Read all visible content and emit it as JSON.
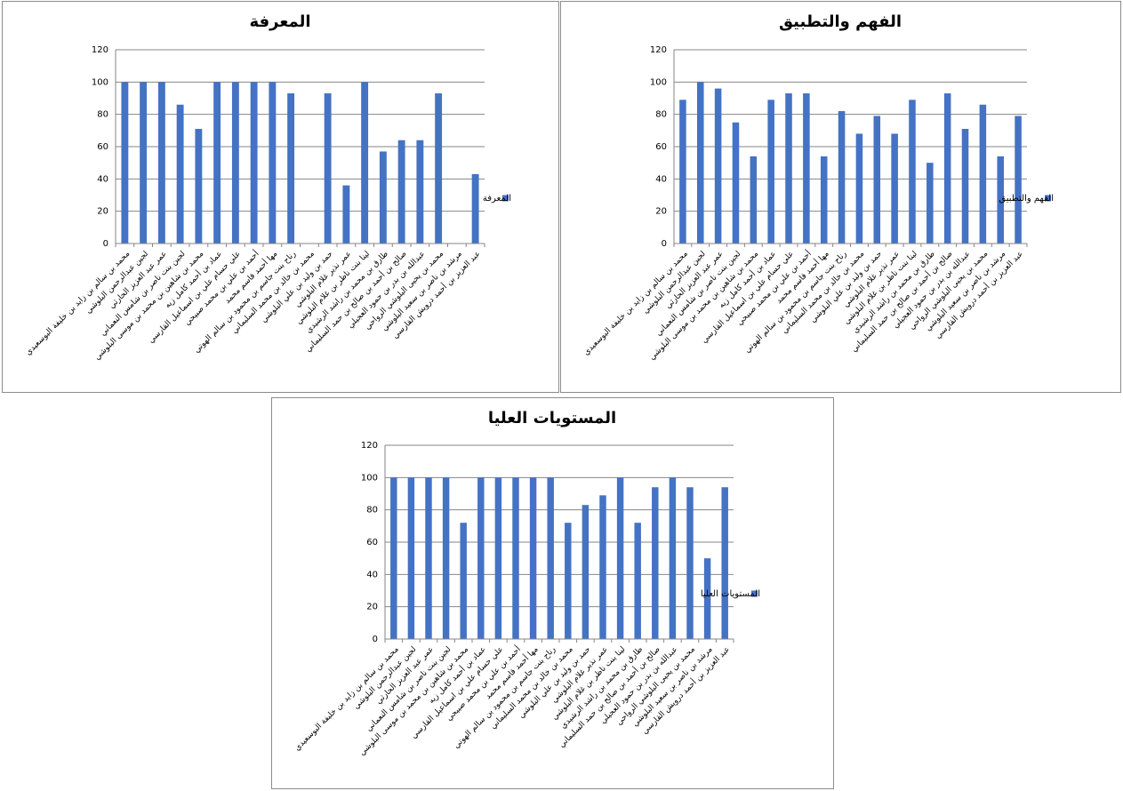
{
  "chart_data": [
    {
      "type": "bar",
      "title": "المعرفة",
      "color": "#4472c4",
      "legend": "right",
      "grid": true,
      "categories": [
        "محمد بن سالم بن زايد بن خليفة البوسعيدي",
        "لجين عبدالرحمن البلوشي",
        "عمر عبد العزيز الحارثي",
        "لجين بنت ناصر بن شامس النعماني",
        "محمد بن شاهين بن محمد بن موسى البلوشي",
        "عماد بن أحمد كامل زيه",
        "علي حسام علي بن اسماعيل القارسي",
        "أحمد بن علي بن محمد صبيحي",
        "مها أحمد قاسم محمد",
        "رناح بنت جاسم بن محمود بن سالم الهوتي",
        "محمد بن خالد بن محمد السليماني",
        "حمد بن وليد بن علي البلوشي",
        "عمر نذير غلام البلوشي",
        "لينا بنت ناظر بن غلام البلوشي",
        "طارق بن محمد بن راشد الرشيدي",
        "صالح بن أحمد بن صالح بن حمد السليماني",
        "عبدالله بن بدر بن حمود العجيلي",
        "محمد بن يحيى البلوشي الرواحي",
        "مرشد بن ناصر بن سعيد البلوشي",
        "عبد العزيز بن أحمد درويش القارسي"
      ],
      "series": [
        {
          "name": "المعرفة",
          "color": "#4472c4",
          "values": [
            100,
            100,
            100,
            86,
            71,
            100,
            100,
            100,
            100,
            93,
            0,
            93,
            36,
            100,
            57,
            64,
            64,
            93,
            0,
            43
          ]
        }
      ],
      "ylim": [
        0,
        120
      ],
      "yticks": [
        0,
        20,
        40,
        60,
        80,
        100,
        120
      ]
    },
    {
      "type": "bar",
      "title": "الفهم والتطبيق",
      "color": "#4472c4",
      "legend": "right",
      "grid": true,
      "categories": [
        "محمد بن سالم بن زايد بن خليفة البوسعيدي",
        "لجين عبدالرحمن البلوشي",
        "عمر عبد العزيز الحارثي",
        "لجين بنت ناصر بن شامس النعماني",
        "محمد بن شاهين بن محمد بن موسى البلوشي",
        "عماد بن أحمد كامل زيه",
        "علي حسام علي بن اسماعيل القارسي",
        "أحمد بن علي بن محمد صبيحي",
        "مها أحمد قاسم محمد",
        "رناح بنت جاسم بن محمود بن سالم الهوتي",
        "محمد بن خالد بن محمد السليماني",
        "حمد بن وليد بن علي البلوشي",
        "عمر نذير غلام البلوشي",
        "لينا بنت ناظر بن غلام البلوشي",
        "طارق بن محمد بن راشد الرشيدي",
        "صالح بن أحمد بن صالح بن حمد السليماني",
        "عبدالله بن بدر بن حمود العجيلي",
        "محمد بن يحيى البلوشي الرواحي",
        "مرشد بن ناصر بن سعيد البلوشي",
        "عبد العزيز بن أحمد درويش القارسي"
      ],
      "series": [
        {
          "name": "الفهم والتطبيق",
          "color": "#4472c4",
          "values": [
            89,
            100,
            96,
            75,
            54,
            89,
            93,
            93,
            54,
            82,
            68,
            79,
            68,
            89,
            50,
            93,
            71,
            86,
            54,
            79
          ]
        }
      ],
      "ylim": [
        0,
        120
      ],
      "yticks": [
        0,
        20,
        40,
        60,
        80,
        100,
        120
      ]
    },
    {
      "type": "bar",
      "title": "المستويات العليا",
      "color": "#4472c4",
      "legend": "right",
      "grid": true,
      "categories": [
        "محمد بن سالم بن زايد بن خليفة البوسعيدي",
        "لجين عبدالرحمن البلوشي",
        "عمر عبد العزيز الحارثي",
        "لجين بنت ناصر بن شامس النعماني",
        "محمد بن شاهين بن محمد بن موسى البلوشي",
        "عماد بن أحمد كامل زيه",
        "علي حسام علي بن اسماعيل القارسي",
        "أحمد بن علي بن محمد صبيحي",
        "مها أحمد قاسم محمد",
        "رناح بنت جاسم بن محمود بن سالم الهوتي",
        "محمد بن خالد بن محمد السليماني",
        "حمد بن وليد بن علي البلوشي",
        "عمر نذير غلام البلوشي",
        "لينا بنت ناظر بن غلام البلوشي",
        "طارق بن محمد بن راشد الرشيدي",
        "صالح بن أحمد بن صالح بن حمد السليماني",
        "عبدالله بن بدر بن حمود العجيلي",
        "محمد بن يحيى البلوشي الرواحي",
        "مرشد بن ناصر بن سعيد البلوشي",
        "عبد العزيز بن أحمد درويش القارسي"
      ],
      "series": [
        {
          "name": "المستويات العليا",
          "color": "#4472c4",
          "values": [
            100,
            100,
            100,
            100,
            72,
            100,
            100,
            100,
            100,
            100,
            72,
            83,
            89,
            100,
            72,
            94,
            100,
            94,
            50,
            94
          ]
        }
      ],
      "ylim": [
        0,
        120
      ],
      "yticks": [
        0,
        20,
        40,
        60,
        80,
        100,
        120
      ]
    }
  ]
}
